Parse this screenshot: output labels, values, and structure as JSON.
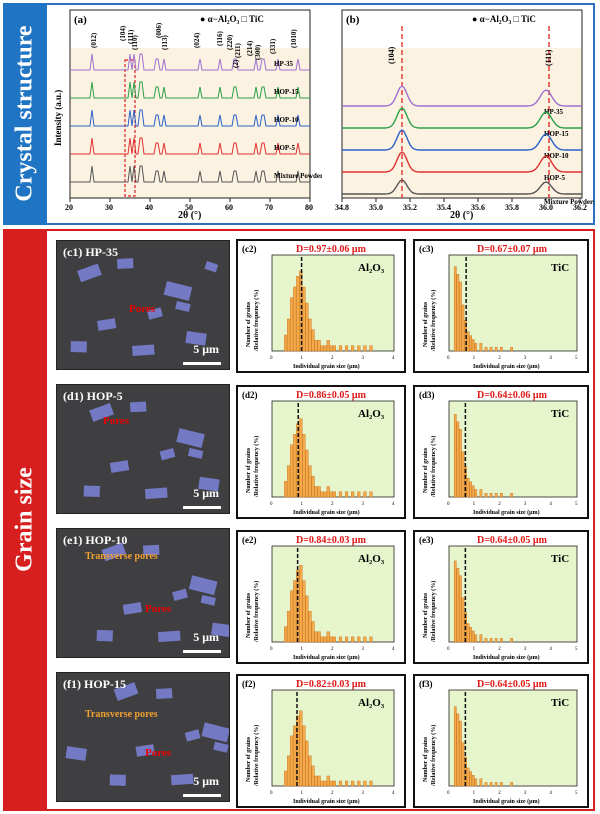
{
  "sidebar": {
    "top_label": "Crystal structure",
    "bottom_label": "Grain size"
  },
  "panel_a": {
    "label": "(a)",
    "legend": "● α−Al₂O₃   □ TiC",
    "ylabel": "Intensity (a.u.)",
    "xlabel": "2θ (°)",
    "xticks": [
      "20",
      "30",
      "40",
      "50",
      "60",
      "70",
      "80"
    ],
    "series_labels": [
      "HP-35",
      "HOP-15",
      "HOP-10",
      "HOP-5",
      "Mixture Powders"
    ],
    "series_colors": [
      "#a070d0",
      "#2ca048",
      "#2a62c8",
      "#e03030",
      "#555555"
    ],
    "peak_labels": [
      "(012)",
      "(104)",
      "(111)",
      "(110)",
      "(006)",
      "(113)",
      "(024)",
      "(116)",
      "(220)",
      "(211)",
      "(2)",
      "(214)",
      "(300)",
      "(331)",
      "(1010)"
    ]
  },
  "panel_b": {
    "label": "(b)",
    "legend": "● α−Al₂O₃   □ TiC",
    "ylabel": "Intensity (a.u.)",
    "xlabel": "2θ (°)",
    "xticks": [
      "34.8",
      "35.0",
      "35.2",
      "35.4",
      "35.6",
      "35.8",
      "36.0",
      "36.2"
    ],
    "series_labels": [
      "HP-35",
      "HOP-15",
      "HOP-10",
      "HOP-5",
      "Mixture Powders"
    ],
    "peak_labels": [
      "(104)",
      "(111)"
    ]
  },
  "sem": [
    {
      "label": "(c1) HP-35",
      "pores": "Pores",
      "orange": "",
      "scale": "5 μm"
    },
    {
      "label": "(d1) HOP-5",
      "pores": "Pores",
      "orange": "",
      "scale": "5 μm"
    },
    {
      "label": "(e1) HOP-10",
      "pores": "Pores",
      "orange": "Transverse pores",
      "scale": "5 μm"
    },
    {
      "label": "(f1) HOP-15",
      "pores": "Pores",
      "orange": "Transverse pores",
      "scale": "5 μm"
    }
  ],
  "hist_common": {
    "ylabel1": "Number of grains",
    "ylabel2": "/Relative frequency (%)",
    "xlabel": "Individual grain size (μm)",
    "al_phase": "Al₂O₃",
    "tic_phase": "TiC"
  },
  "hist_al": [
    {
      "label": "(c2)",
      "d": "D=0.97±0.06 μm"
    },
    {
      "label": "(d2)",
      "d": "D=0.86±0.05 μm"
    },
    {
      "label": "(e2)",
      "d": "D=0.84±0.03 μm"
    },
    {
      "label": "(f2)",
      "d": "D=0.82±0.03 μm"
    }
  ],
  "hist_tic": [
    {
      "label": "(c3)",
      "d": "D=0.67±0.07 μm"
    },
    {
      "label": "(d3)",
      "d": "D=0.64±0.06 μm"
    },
    {
      "label": "(e3)",
      "d": "D=0.64±0.05 μm"
    },
    {
      "label": "(f3)",
      "d": "D=0.64±0.05 μm"
    }
  ],
  "chart_data": [
    {
      "type": "bar",
      "title": "(c2) Al2O3 grain size distribution",
      "xlabel": "Individual grain size (μm)",
      "ylabel": "Number of grains /Relative frequency (%)",
      "xlim": [
        0,
        4
      ],
      "ylim": [
        0,
        18
      ],
      "mean": 0.97,
      "bins": [
        0.4,
        0.5,
        0.6,
        0.7,
        0.8,
        0.9,
        1.0,
        1.1,
        1.2,
        1.3,
        1.4,
        1.5,
        1.6,
        1.7,
        1.8,
        1.9,
        2.0,
        2.2,
        2.4,
        2.6,
        2.8,
        3.0,
        3.2
      ],
      "values": [
        3,
        6,
        10,
        12,
        14,
        15,
        12,
        9,
        6,
        4,
        2,
        2,
        1,
        1,
        2,
        1,
        1,
        1,
        1,
        1,
        1,
        1,
        1
      ]
    },
    {
      "type": "bar",
      "title": "(c3) TiC grain size distribution",
      "xlabel": "Individual grain size (μm)",
      "ylabel": "Number of grains /Relative frequency (%)",
      "xlim": [
        0,
        5
      ],
      "ylim": [
        0,
        25
      ],
      "mean": 0.67,
      "bins": [
        0.2,
        0.3,
        0.4,
        0.5,
        0.6,
        0.7,
        0.8,
        0.9,
        1.0,
        1.2,
        1.4,
        1.6,
        1.8,
        2.0,
        2.4
      ],
      "values": [
        22,
        20,
        18,
        12,
        8,
        5,
        4,
        3,
        2,
        2,
        1,
        1,
        1,
        1,
        1
      ]
    }
  ]
}
